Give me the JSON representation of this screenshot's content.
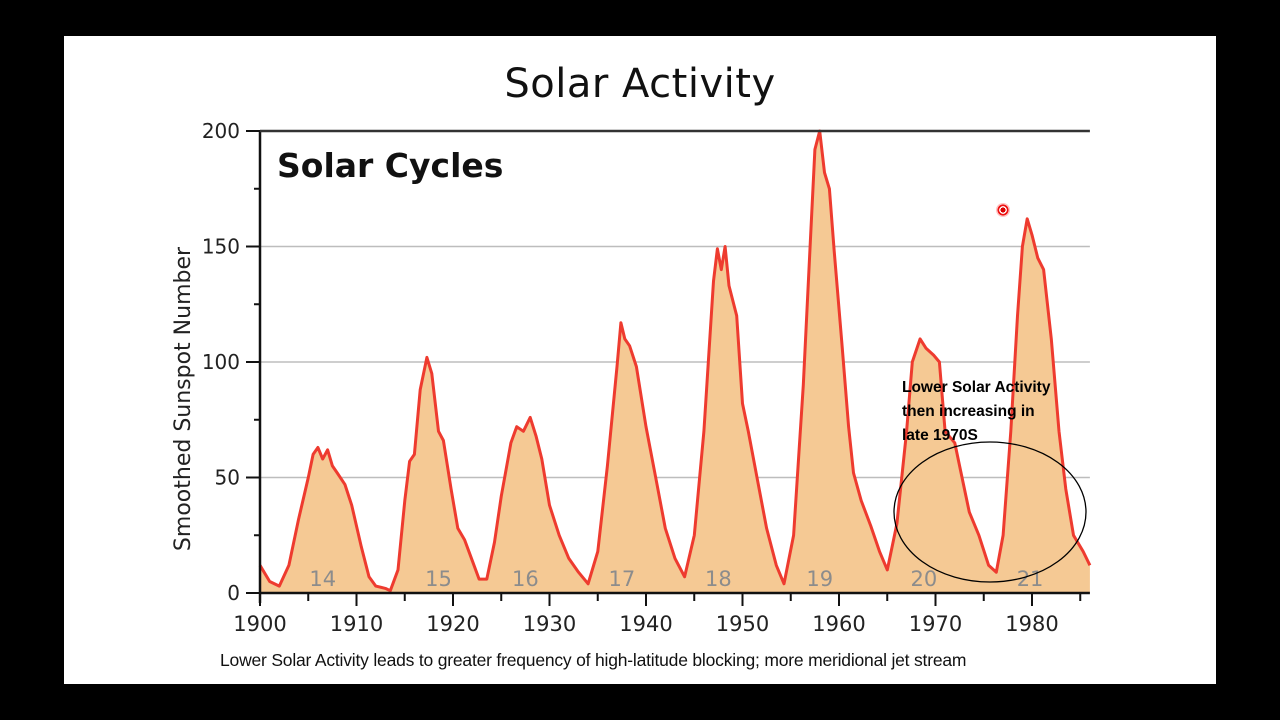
{
  "slide": {
    "title": "Solar Activity",
    "caption": "Lower Solar Activity leads to greater frequency of high-latitude blocking; more meridional jet stream",
    "annotation": {
      "lines": [
        "Lower Solar Activity",
        "then increasing in",
        "late 1970S"
      ],
      "highlight": "ellipse around 1967–1986 region"
    },
    "pointer": "laser-pointer-dot"
  },
  "chart_data": {
    "type": "area",
    "title": "Solar Cycles",
    "xlabel": "",
    "ylabel": "Smoothed Sunspot Number",
    "xlim": [
      1900,
      1986
    ],
    "ylim": [
      0,
      200
    ],
    "x_ticks": [
      1900,
      1910,
      1920,
      1930,
      1940,
      1950,
      1960,
      1970,
      1980
    ],
    "y_ticks": [
      0,
      50,
      100,
      150,
      200
    ],
    "grid": "horizontal",
    "colors": {
      "line": "#ee3b2f",
      "fill": "#f5c994",
      "grid": "#bdbdbd",
      "cycle_label": "#8c8c8c"
    },
    "cycle_labels": [
      {
        "label": "14",
        "x": 1906.5
      },
      {
        "label": "15",
        "x": 1918.5
      },
      {
        "label": "16",
        "x": 1927.5
      },
      {
        "label": "17",
        "x": 1937.5
      },
      {
        "label": "18",
        "x": 1947.5
      },
      {
        "label": "19",
        "x": 1958
      },
      {
        "label": "20",
        "x": 1968.8
      },
      {
        "label": "21",
        "x": 1979.8
      }
    ],
    "series": [
      {
        "name": "Smoothed Sunspot Number",
        "points": [
          [
            1900,
            12
          ],
          [
            1901,
            5
          ],
          [
            1902,
            3
          ],
          [
            1903,
            12
          ],
          [
            1904,
            32
          ],
          [
            1905,
            50
          ],
          [
            1905.5,
            60
          ],
          [
            1906,
            63
          ],
          [
            1906.5,
            58
          ],
          [
            1907,
            62
          ],
          [
            1907.5,
            55
          ],
          [
            1908,
            52
          ],
          [
            1908.8,
            47
          ],
          [
            1909.5,
            38
          ],
          [
            1910.5,
            20
          ],
          [
            1911.3,
            7
          ],
          [
            1912,
            3
          ],
          [
            1913,
            2
          ],
          [
            1913.5,
            1
          ],
          [
            1914.3,
            10
          ],
          [
            1915,
            40
          ],
          [
            1915.5,
            57
          ],
          [
            1916,
            60
          ],
          [
            1916.6,
            88
          ],
          [
            1917.3,
            102
          ],
          [
            1917.8,
            95
          ],
          [
            1918.5,
            70
          ],
          [
            1919,
            66
          ],
          [
            1919.8,
            45
          ],
          [
            1920.5,
            28
          ],
          [
            1921.2,
            23
          ],
          [
            1922,
            14
          ],
          [
            1922.7,
            6
          ],
          [
            1923.5,
            6
          ],
          [
            1924.3,
            22
          ],
          [
            1925,
            42
          ],
          [
            1926,
            65
          ],
          [
            1926.6,
            72
          ],
          [
            1927.3,
            70
          ],
          [
            1928,
            76
          ],
          [
            1928.6,
            68
          ],
          [
            1929.2,
            58
          ],
          [
            1930,
            38
          ],
          [
            1931,
            25
          ],
          [
            1932,
            15
          ],
          [
            1933,
            9
          ],
          [
            1934,
            4
          ],
          [
            1935,
            18
          ],
          [
            1936,
            55
          ],
          [
            1937,
            98
          ],
          [
            1937.4,
            117
          ],
          [
            1937.8,
            110
          ],
          [
            1938.3,
            107
          ],
          [
            1939,
            98
          ],
          [
            1940,
            72
          ],
          [
            1941,
            50
          ],
          [
            1942,
            28
          ],
          [
            1943,
            15
          ],
          [
            1944,
            7
          ],
          [
            1945,
            25
          ],
          [
            1946,
            70
          ],
          [
            1947,
            135
          ],
          [
            1947.4,
            149
          ],
          [
            1947.8,
            140
          ],
          [
            1948.2,
            150
          ],
          [
            1948.6,
            133
          ],
          [
            1949.4,
            120
          ],
          [
            1950,
            82
          ],
          [
            1950.6,
            70
          ],
          [
            1951.5,
            50
          ],
          [
            1952.5,
            28
          ],
          [
            1953.5,
            12
          ],
          [
            1954.3,
            4
          ],
          [
            1955.3,
            25
          ],
          [
            1956.3,
            90
          ],
          [
            1957,
            150
          ],
          [
            1957.5,
            192
          ],
          [
            1958,
            200
          ],
          [
            1958.5,
            182
          ],
          [
            1959,
            175
          ],
          [
            1959.5,
            148
          ],
          [
            1960.3,
            108
          ],
          [
            1961,
            72
          ],
          [
            1961.5,
            52
          ],
          [
            1962.3,
            40
          ],
          [
            1963.3,
            29
          ],
          [
            1964.2,
            18
          ],
          [
            1965,
            10
          ],
          [
            1966,
            30
          ],
          [
            1967,
            70
          ],
          [
            1967.6,
            100
          ],
          [
            1968.4,
            110
          ],
          [
            1969,
            106
          ],
          [
            1969.8,
            103
          ],
          [
            1970.4,
            100
          ],
          [
            1971,
            70
          ],
          [
            1972,
            65
          ],
          [
            1972.5,
            55
          ],
          [
            1973.5,
            35
          ],
          [
            1974.5,
            25
          ],
          [
            1975.5,
            12
          ],
          [
            1976.3,
            9
          ],
          [
            1977,
            25
          ],
          [
            1977.8,
            70
          ],
          [
            1978.5,
            120
          ],
          [
            1979,
            150
          ],
          [
            1979.5,
            162
          ],
          [
            1980,
            155
          ],
          [
            1980.6,
            145
          ],
          [
            1981.2,
            140
          ],
          [
            1982,
            110
          ],
          [
            1982.8,
            70
          ],
          [
            1983.5,
            45
          ],
          [
            1984.3,
            25
          ],
          [
            1985.3,
            18
          ],
          [
            1986,
            12
          ]
        ]
      }
    ]
  }
}
